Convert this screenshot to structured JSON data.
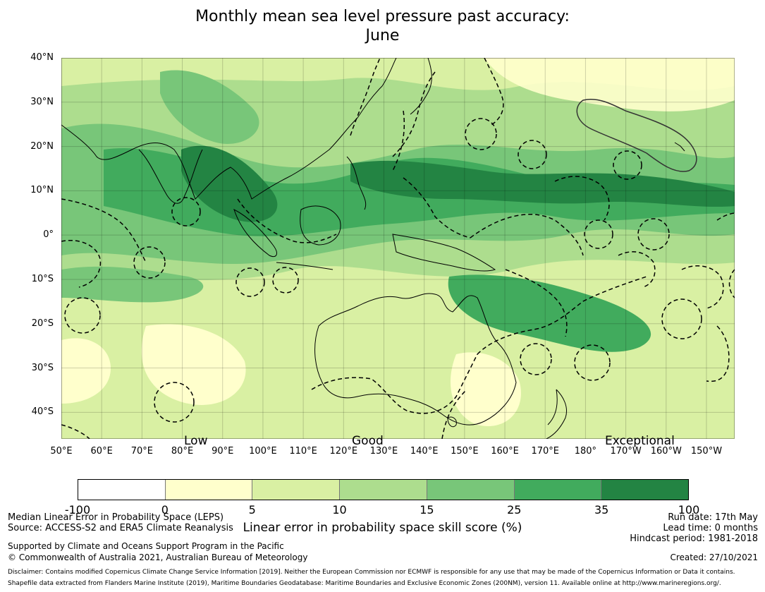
{
  "title": {
    "line1": "Monthly mean sea level pressure past accuracy:",
    "line2": "June"
  },
  "map": {
    "lat_labels": [
      "40°N",
      "30°N",
      "20°N",
      "10°N",
      "0°",
      "10°S",
      "20°S",
      "30°S",
      "40°S"
    ],
    "lat_values": [
      40,
      30,
      20,
      10,
      0,
      -10,
      -20,
      -30,
      -40
    ],
    "lon_labels": [
      "50°E",
      "60°E",
      "70°E",
      "80°E",
      "90°E",
      "100°E",
      "110°E",
      "120°E",
      "130°E",
      "140°E",
      "150°E",
      "160°E",
      "170°E",
      "180°",
      "170°W",
      "160°W",
      "150°W"
    ],
    "lon_values": [
      50,
      60,
      70,
      80,
      90,
      100,
      110,
      120,
      130,
      140,
      150,
      160,
      170,
      180,
      190,
      200,
      210
    ],
    "extent": {
      "lon_min": 50,
      "lon_max": 217,
      "lat_min": -46,
      "lat_max": 40
    },
    "gridlines": true,
    "category_labels": {
      "low": "Low",
      "good": "Good",
      "exceptional": "Exceptional"
    }
  },
  "colorbar": {
    "bounds": [
      "-100",
      "0",
      "5",
      "10",
      "15",
      "25",
      "35",
      "100"
    ],
    "colors": [
      "#ffffff",
      "#ffffcc",
      "#d9f0a3",
      "#addd8e",
      "#78c679",
      "#41ab5d",
      "#238443"
    ],
    "label": "Linear error in probability space skill score (%)"
  },
  "footer": {
    "method": "Median Linear Error in Probability Space (LEPS)",
    "source": "Source: ACCESS-S2 and ERA5 Climate Reanalysis",
    "supported": "Supported by Climate and Oceans Support Program in the Pacific",
    "copyright": "© Commonwealth of Australia 2021, Australian Bureau of Meteorology",
    "run_date": "Run date: 17th May",
    "lead_time": "Lead time: 0 months",
    "hindcast": "Hindcast period: 1981-2018",
    "created": "Created: 27/10/2021",
    "disclaimer": "Disclaimer: Contains modified Copernicus Climate Change Service Information [2019]. Neither the European Commission nor ECMWF is responsible for any use that may be made of the Copernicus Information or Data it contains.",
    "shapefile": "Shapefile data extracted from Flanders Marine Institute (2019), Maritime Boundaries Geodatabase: Maritime Boundaries and Exclusive Economic Zones (200NM), version 11. Available online at http://www.marineregions.org/."
  }
}
